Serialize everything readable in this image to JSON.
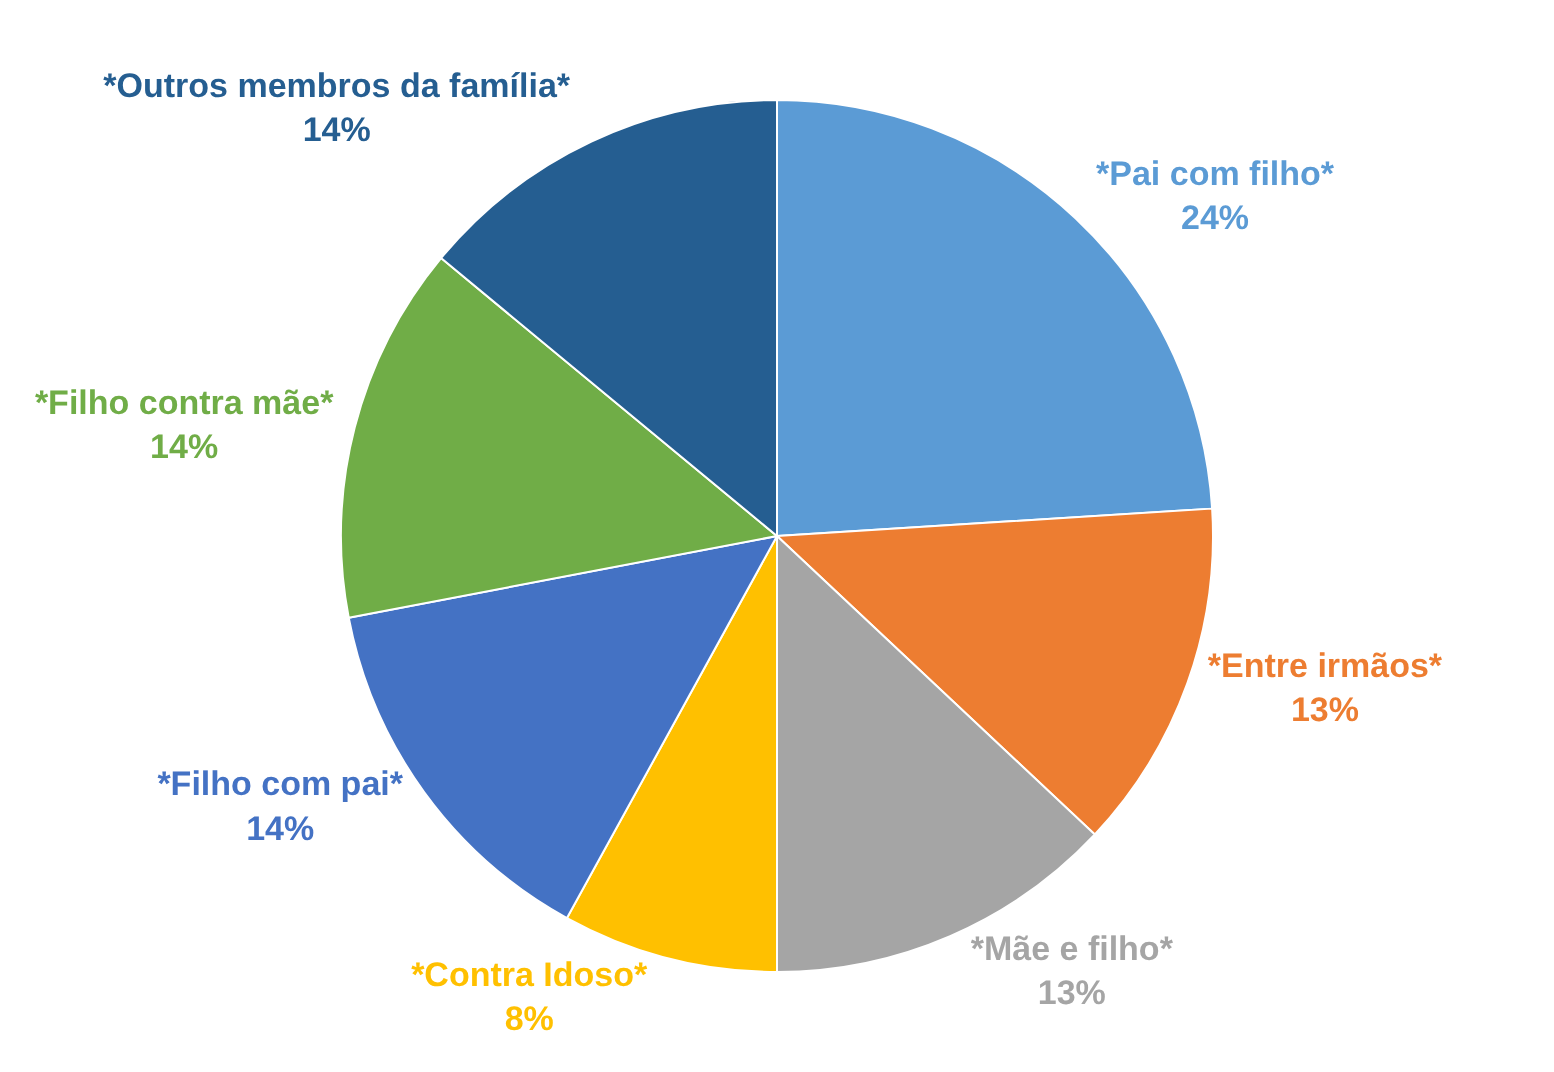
{
  "chart_data": {
    "type": "pie",
    "categories": [
      "*Pai com filho*",
      "*Entre irmãos*",
      "*Mãe e filho*",
      "*Contra Idoso*",
      "*Filho com pai*",
      "*Filho contra mãe*",
      "*Outros membros da família*"
    ],
    "values": [
      24,
      13,
      13,
      8,
      14,
      14,
      14
    ],
    "value_labels": [
      "24%",
      "13%",
      "13%",
      "8%",
      "14%",
      "14%",
      "14%"
    ],
    "colors": [
      "#5b9bd5",
      "#ed7d31",
      "#a5a5a5",
      "#ffc000",
      "#4472c4",
      "#70ad47",
      "#255e91"
    ],
    "legend": false
  }
}
